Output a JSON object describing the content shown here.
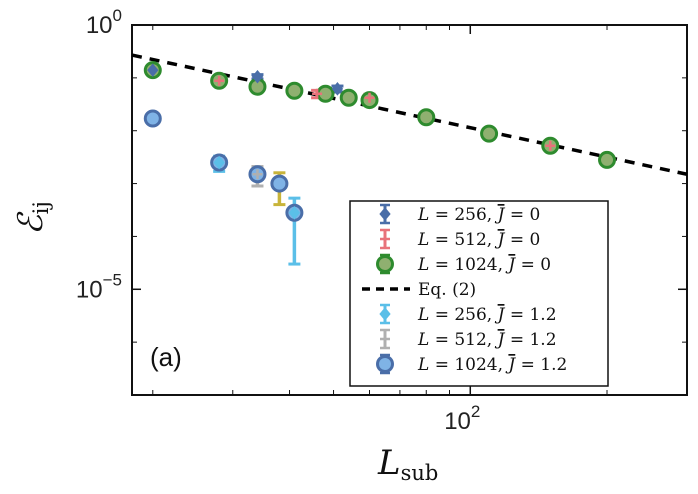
{
  "chart_data": {
    "type": "scatter",
    "panel_label": "(a)",
    "xlabel": {
      "main": "L",
      "sub": "sub"
    },
    "ylabel": {
      "main": "ℰ",
      "sub": "ij"
    },
    "xscale": "log",
    "yscale": "log",
    "xlim": [
      18,
      300
    ],
    "ylim": [
      1e-07,
      1
    ],
    "yticks": [
      {
        "value": 1,
        "base": "10",
        "exp": "0"
      },
      {
        "value": 1e-05,
        "base": "10",
        "exp": "−5"
      }
    ],
    "xticks": [
      {
        "value": 100,
        "base": "10",
        "exp": "2"
      }
    ],
    "legend_position": "right-center",
    "series": [
      {
        "name": "L = 256, J̄ = 0",
        "label_a": "L",
        "label_b": " = 256, ",
        "label_c": "J",
        "label_d": " = 0",
        "color": "#4a6ea8",
        "marker": "diamond",
        "x": [
          20,
          34,
          51
        ],
        "y": [
          0.14,
          0.105,
          0.062
        ],
        "err": [
          0.02,
          0.01,
          0.008
        ]
      },
      {
        "name": "L = 512, J̄ = 0",
        "label_a": "L",
        "label_b": " = 512, ",
        "label_c": "J",
        "label_d": " = 0",
        "color": "#e8727a",
        "marker": "plus",
        "x": [
          28,
          46,
          60,
          150
        ],
        "y": [
          0.088,
          0.05,
          0.042,
          0.0052
        ],
        "err": [
          0.015,
          0.008,
          0.007,
          0.0009
        ]
      },
      {
        "name": "L = 1024, J̄ = 0",
        "label_a": "L",
        "label_b": " = 1024, ",
        "label_c": "J",
        "label_d": " = 0",
        "color": "#2e8b2e",
        "marker": "circle",
        "x": [
          20,
          28,
          34,
          41,
          48,
          54,
          60,
          80,
          110,
          150,
          200
        ],
        "y": [
          0.14,
          0.088,
          0.068,
          0.057,
          0.05,
          0.042,
          0.038,
          0.018,
          0.0088,
          0.0052,
          0.0028
        ],
        "err": []
      },
      {
        "name": "Eq. (2)",
        "label_a": "Eq. (2)",
        "label_b": "",
        "label_c": "",
        "label_d": "",
        "color": "#000000",
        "marker": "dashed-line",
        "x": [
          18,
          300
        ],
        "y": [
          0.27,
          0.0015
        ],
        "err": []
      },
      {
        "name": "L = 256, J̄ = 1.2",
        "label_a": "L",
        "label_b": " = 256, ",
        "label_c": "J",
        "label_d": " = 1.2",
        "color": "#5bbfe8",
        "marker": "diamond",
        "x": [
          28,
          41
        ],
        "y": [
          0.0025,
          0.00028
        ],
        "err": [
          0.0008,
          0.00025
        ]
      },
      {
        "name": "L = 512, J̄ = 1.2",
        "label_a": "L",
        "label_b": " = 512, ",
        "label_c": "J",
        "label_d": " = 1.2",
        "color": "#b0b0b0",
        "marker": "plus",
        "x": [
          34
        ],
        "y": [
          0.0015
        ],
        "err": [
          0.0006
        ]
      },
      {
        "name": "L = 1024, J̄ = 1.2",
        "label_a": "L",
        "label_b": " = 1024, ",
        "label_c": "J",
        "label_d": " = 1.2",
        "color": "#4a6ea8",
        "marker": "circle",
        "x": [
          20,
          28,
          34,
          38,
          41
        ],
        "y": [
          0.017,
          0.0025,
          0.0015,
          0.001,
          0.00028
        ],
        "err": []
      }
    ],
    "extra_errorbars": [
      {
        "x": 38,
        "y": 0.001,
        "err": 0.0006,
        "color": "#c8b43a"
      }
    ]
  }
}
